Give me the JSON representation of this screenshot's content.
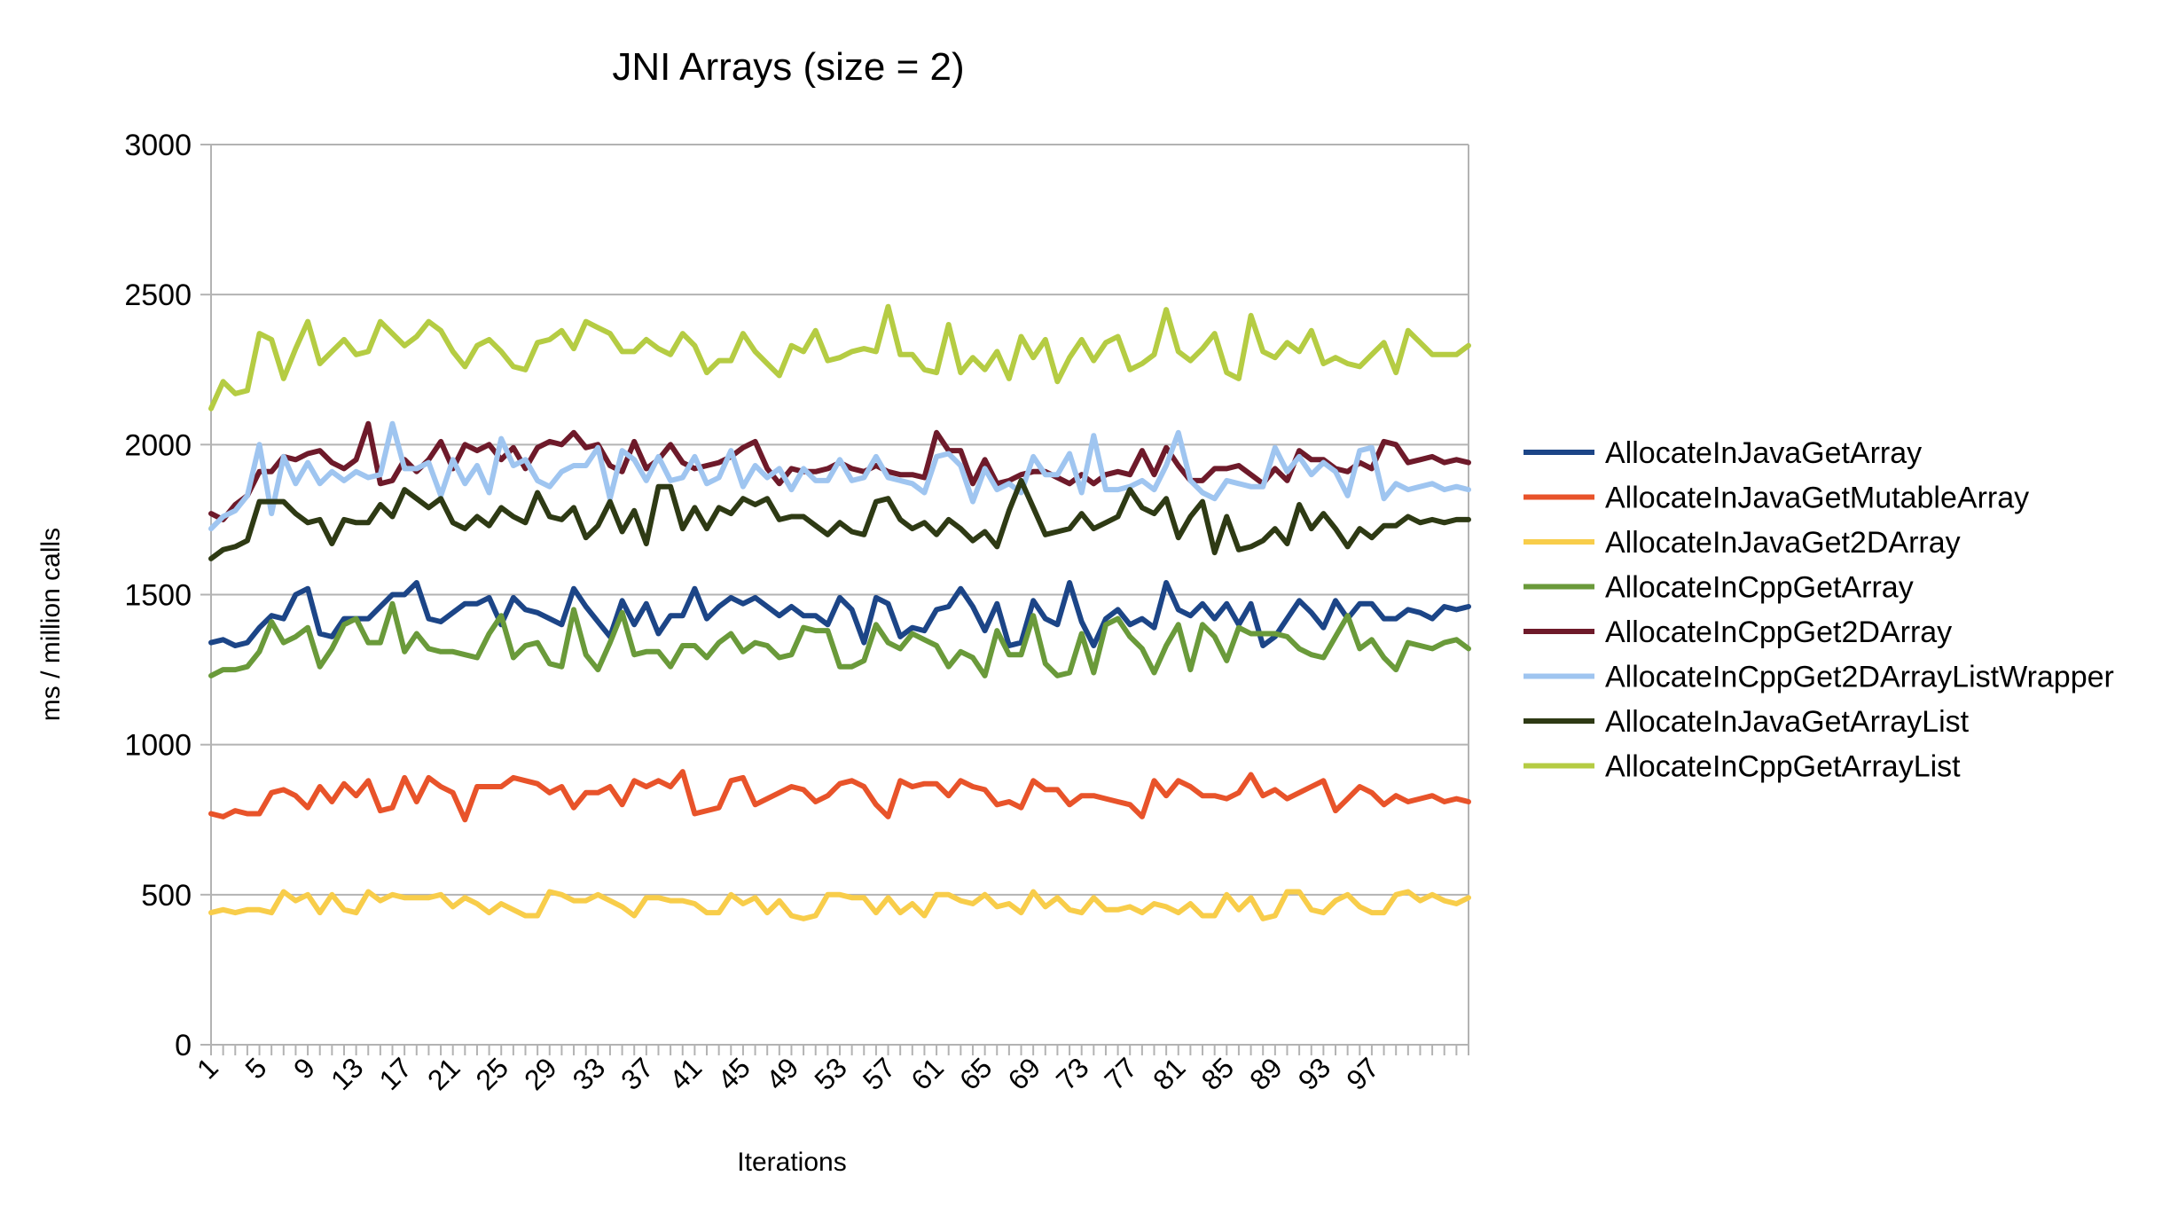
{
  "chart_data": {
    "type": "line",
    "title": "JNI Arrays (size = 2)",
    "xlabel": "Iterations",
    "ylabel": "ms / million calls",
    "ylim": [
      0,
      3000
    ],
    "yticks": [
      0,
      500,
      1000,
      1500,
      2000,
      2500,
      3000
    ],
    "x": [
      1,
      2,
      3,
      4,
      5,
      6,
      7,
      8,
      9,
      10,
      11,
      12,
      13,
      14,
      15,
      16,
      17,
      18,
      19,
      20,
      21,
      22,
      23,
      24,
      25,
      26,
      27,
      28,
      29,
      30,
      31,
      32,
      33,
      34,
      35,
      36,
      37,
      38,
      39,
      40,
      41,
      42,
      43,
      44,
      45,
      46,
      47,
      48,
      49,
      50,
      51,
      52,
      53,
      54,
      55,
      56,
      57,
      58,
      59,
      60,
      61,
      62,
      63,
      64,
      65,
      66,
      67,
      68,
      69,
      70,
      71,
      72,
      73,
      74,
      75,
      76,
      77,
      78,
      79,
      80,
      81,
      82,
      83,
      84,
      85,
      86,
      87,
      88,
      89,
      90,
      91,
      92,
      93,
      94,
      95,
      96,
      97,
      98,
      99,
      100,
      101,
      102,
      103,
      104,
      105
    ],
    "xtick_labels": [
      "1",
      "5",
      "9",
      "13",
      "17",
      "21",
      "25",
      "29",
      "33",
      "37",
      "41",
      "45",
      "49",
      "53",
      "57",
      "61",
      "65",
      "69",
      "73",
      "77",
      "81",
      "85",
      "89",
      "93",
      "97"
    ],
    "grid": true,
    "legend_position": "right",
    "series": [
      {
        "name": "AllocateInJavaGetArray",
        "color": "#1c4587",
        "values": [
          1340,
          1350,
          1330,
          1340,
          1390,
          1430,
          1420,
          1500,
          1520,
          1370,
          1360,
          1420,
          1420,
          1420,
          1460,
          1500,
          1500,
          1540,
          1420,
          1410,
          1440,
          1470,
          1470,
          1490,
          1400,
          1490,
          1450,
          1440,
          1420,
          1400,
          1520,
          1460,
          1410,
          1360,
          1480,
          1400,
          1470,
          1370,
          1430,
          1430,
          1520,
          1420,
          1460,
          1490,
          1470,
          1490,
          1460,
          1430,
          1460,
          1430,
          1430,
          1400,
          1490,
          1450,
          1340,
          1490,
          1470,
          1360,
          1390,
          1380,
          1450,
          1460,
          1520,
          1460,
          1380,
          1470,
          1330,
          1340,
          1480,
          1420,
          1400,
          1540,
          1410,
          1330,
          1420,
          1450,
          1400,
          1420,
          1390,
          1540,
          1450,
          1430,
          1470,
          1420,
          1470,
          1400,
          1470,
          1330,
          1360,
          1420,
          1480,
          1440,
          1390,
          1480,
          1420,
          1470,
          1470,
          1420,
          1420,
          1450,
          1440,
          1420,
          1460,
          1450,
          1460
        ]
      },
      {
        "name": "AllocateInJavaGetMutableArray",
        "color": "#e8532a",
        "values": [
          770,
          760,
          780,
          770,
          770,
          840,
          850,
          830,
          790,
          860,
          810,
          870,
          830,
          880,
          780,
          790,
          890,
          810,
          890,
          860,
          840,
          750,
          860,
          860,
          860,
          890,
          880,
          870,
          840,
          860,
          790,
          840,
          840,
          860,
          800,
          880,
          860,
          880,
          860,
          910,
          770,
          780,
          790,
          880,
          890,
          800,
          820,
          840,
          860,
          850,
          810,
          830,
          870,
          880,
          860,
          800,
          760,
          880,
          860,
          870,
          870,
          830,
          880,
          860,
          850,
          800,
          810,
          790,
          880,
          850,
          850,
          800,
          830,
          830,
          820,
          810,
          800,
          760,
          880,
          830,
          880,
          860,
          830,
          830,
          820,
          840,
          900,
          830,
          850,
          820,
          840,
          860,
          880,
          780,
          820,
          860,
          840,
          800,
          830,
          810,
          820,
          830,
          810,
          820,
          810
        ]
      },
      {
        "name": "AllocateInJavaGet2DArray",
        "color": "#f8cd4a",
        "values": [
          440,
          450,
          440,
          450,
          450,
          440,
          510,
          480,
          500,
          440,
          500,
          450,
          440,
          510,
          480,
          500,
          490,
          490,
          490,
          500,
          460,
          490,
          470,
          440,
          470,
          450,
          430,
          430,
          510,
          500,
          480,
          480,
          500,
          480,
          460,
          430,
          490,
          490,
          480,
          480,
          470,
          440,
          440,
          500,
          470,
          490,
          440,
          480,
          430,
          420,
          430,
          500,
          500,
          490,
          490,
          440,
          490,
          440,
          470,
          430,
          500,
          500,
          480,
          470,
          500,
          460,
          470,
          440,
          510,
          460,
          490,
          450,
          440,
          490,
          450,
          450,
          460,
          440,
          470,
          460,
          440,
          470,
          430,
          430,
          500,
          450,
          490,
          420,
          430,
          510,
          510,
          450,
          440,
          480,
          500,
          460,
          440,
          440,
          500,
          510,
          480,
          500,
          480,
          470,
          490
        ]
      },
      {
        "name": "AllocateInCppGetArray",
        "color": "#6a9a3a",
        "values": [
          1230,
          1250,
          1250,
          1260,
          1310,
          1410,
          1340,
          1360,
          1390,
          1260,
          1320,
          1400,
          1420,
          1340,
          1340,
          1470,
          1310,
          1370,
          1320,
          1310,
          1310,
          1300,
          1290,
          1370,
          1430,
          1290,
          1330,
          1340,
          1270,
          1260,
          1450,
          1300,
          1250,
          1340,
          1440,
          1300,
          1310,
          1310,
          1260,
          1330,
          1330,
          1290,
          1340,
          1370,
          1310,
          1340,
          1330,
          1290,
          1300,
          1390,
          1380,
          1380,
          1260,
          1260,
          1280,
          1400,
          1340,
          1320,
          1370,
          1350,
          1330,
          1260,
          1310,
          1290,
          1230,
          1380,
          1300,
          1300,
          1430,
          1270,
          1230,
          1240,
          1370,
          1240,
          1400,
          1420,
          1360,
          1320,
          1240,
          1330,
          1400,
          1250,
          1400,
          1360,
          1280,
          1390,
          1370,
          1370,
          1370,
          1360,
          1320,
          1300,
          1290,
          1360,
          1430,
          1320,
          1350,
          1290,
          1250,
          1340,
          1330,
          1320,
          1340,
          1350,
          1320
        ]
      },
      {
        "name": "AllocateInCppGet2DArray",
        "color": "#6e1a2a",
        "values": [
          1770,
          1750,
          1800,
          1830,
          1910,
          1910,
          1960,
          1950,
          1970,
          1980,
          1940,
          1920,
          1950,
          2070,
          1870,
          1880,
          1950,
          1910,
          1950,
          2010,
          1920,
          2000,
          1980,
          2000,
          1950,
          1990,
          1920,
          1990,
          2010,
          2000,
          2040,
          1990,
          2000,
          1930,
          1910,
          2010,
          1920,
          1950,
          2000,
          1940,
          1920,
          1930,
          1940,
          1960,
          1990,
          2010,
          1920,
          1870,
          1920,
          1910,
          1910,
          1920,
          1940,
          1920,
          1910,
          1930,
          1910,
          1900,
          1900,
          1890,
          2040,
          1980,
          1980,
          1870,
          1950,
          1870,
          1880,
          1900,
          1910,
          1910,
          1890,
          1870,
          1900,
          1870,
          1900,
          1910,
          1900,
          1980,
          1900,
          1990,
          1930,
          1880,
          1880,
          1920,
          1920,
          1930,
          1900,
          1870,
          1920,
          1880,
          1980,
          1950,
          1950,
          1920,
          1910,
          1940,
          1920,
          2010,
          2000,
          1940,
          1950,
          1960,
          1940,
          1950,
          1940
        ]
      },
      {
        "name": "AllocateInCppGet2DArrayListWrapper",
        "color": "#9fc5f0",
        "values": [
          1720,
          1760,
          1780,
          1830,
          2000,
          1770,
          1960,
          1870,
          1940,
          1870,
          1910,
          1880,
          1910,
          1890,
          1900,
          2070,
          1920,
          1920,
          1940,
          1830,
          1950,
          1870,
          1930,
          1840,
          2020,
          1930,
          1950,
          1880,
          1860,
          1910,
          1930,
          1930,
          1990,
          1820,
          1980,
          1950,
          1880,
          1960,
          1880,
          1890,
          1960,
          1870,
          1890,
          1980,
          1860,
          1930,
          1890,
          1920,
          1850,
          1920,
          1880,
          1880,
          1950,
          1880,
          1890,
          1960,
          1890,
          1880,
          1870,
          1840,
          1960,
          1970,
          1930,
          1810,
          1920,
          1850,
          1870,
          1840,
          1960,
          1900,
          1900,
          1970,
          1840,
          2030,
          1850,
          1850,
          1860,
          1880,
          1850,
          1930,
          2040,
          1880,
          1840,
          1820,
          1880,
          1870,
          1860,
          1860,
          1990,
          1910,
          1960,
          1900,
          1940,
          1910,
          1830,
          1980,
          1990,
          1820,
          1870,
          1850,
          1860,
          1870,
          1850,
          1860,
          1850
        ]
      },
      {
        "name": "AllocateInJavaGetArrayList",
        "color": "#2e3a14",
        "values": [
          1620,
          1650,
          1660,
          1680,
          1810,
          1810,
          1810,
          1770,
          1740,
          1750,
          1670,
          1750,
          1740,
          1740,
          1800,
          1760,
          1850,
          1820,
          1790,
          1820,
          1740,
          1720,
          1760,
          1730,
          1790,
          1760,
          1740,
          1840,
          1760,
          1750,
          1790,
          1690,
          1730,
          1810,
          1710,
          1780,
          1670,
          1860,
          1860,
          1720,
          1790,
          1720,
          1790,
          1770,
          1820,
          1800,
          1820,
          1750,
          1760,
          1760,
          1730,
          1700,
          1740,
          1710,
          1700,
          1810,
          1820,
          1750,
          1720,
          1740,
          1700,
          1750,
          1720,
          1680,
          1710,
          1660,
          1780,
          1880,
          1790,
          1700,
          1710,
          1720,
          1770,
          1720,
          1740,
          1760,
          1850,
          1790,
          1770,
          1820,
          1690,
          1760,
          1810,
          1640,
          1760,
          1650,
          1660,
          1680,
          1720,
          1670,
          1800,
          1720,
          1770,
          1720,
          1660,
          1720,
          1690,
          1730,
          1730,
          1760,
          1740,
          1750,
          1740,
          1750,
          1750
        ]
      },
      {
        "name": "AllocateInCppGetArrayList",
        "color": "#b5cc43",
        "values": [
          2120,
          2210,
          2170,
          2180,
          2370,
          2350,
          2220,
          2320,
          2410,
          2270,
          2310,
          2350,
          2300,
          2310,
          2410,
          2370,
          2330,
          2360,
          2410,
          2380,
          2310,
          2260,
          2330,
          2350,
          2310,
          2260,
          2250,
          2340,
          2350,
          2380,
          2320,
          2410,
          2390,
          2370,
          2310,
          2310,
          2350,
          2320,
          2300,
          2370,
          2330,
          2240,
          2280,
          2280,
          2370,
          2310,
          2270,
          2230,
          2330,
          2310,
          2380,
          2280,
          2290,
          2310,
          2320,
          2310,
          2460,
          2300,
          2300,
          2250,
          2240,
          2400,
          2240,
          2290,
          2250,
          2310,
          2220,
          2360,
          2290,
          2350,
          2210,
          2290,
          2350,
          2280,
          2340,
          2360,
          2250,
          2270,
          2300,
          2450,
          2310,
          2280,
          2320,
          2370,
          2240,
          2220,
          2430,
          2310,
          2290,
          2340,
          2310,
          2380,
          2270,
          2290,
          2270,
          2260,
          2300,
          2340,
          2240,
          2380,
          2340,
          2300,
          2300,
          2300,
          2330
        ]
      }
    ]
  }
}
